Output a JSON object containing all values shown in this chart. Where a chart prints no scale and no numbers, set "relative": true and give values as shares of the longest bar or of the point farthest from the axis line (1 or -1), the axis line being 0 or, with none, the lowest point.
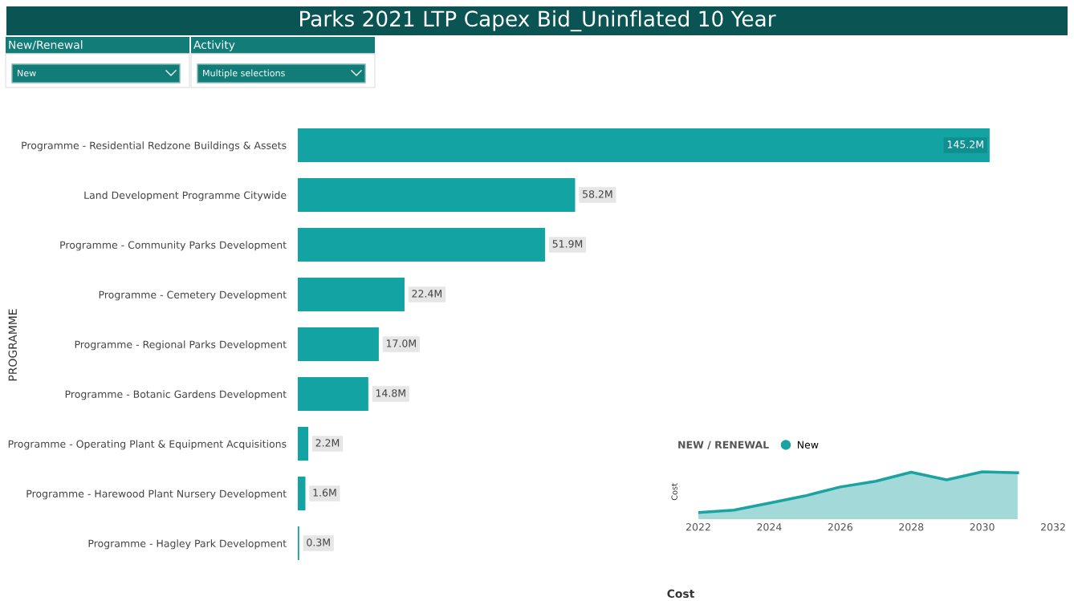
{
  "chart_data": [
    {
      "type": "other",
      "title": "Parks 2021 LTP Capex Bid_Uninflated 10 Year",
      "annotations": [
        "New/Renewal",
        "New",
        "Activity",
        "Multiple selections"
      ]
    },
    {
      "type": "bar",
      "orientation": "horizontal",
      "ylabel": "PROGRAMME",
      "xlabel": "Cost",
      "color": "#13a3a3",
      "tick_labels": "y",
      "grid": false,
      "categories": [
        "Programme - Residential Redzone Buildings & Assets",
        "Land Development Programme Citywide",
        "Programme - Community Parks Development",
        "Programme - Cemetery Development",
        "Programme - Regional Parks Development",
        "Programme - Botanic Gardens Development",
        "Programme - Operating Plant & Equipment Acquisitions",
        "Programme - Harewood Plant Nursery Development",
        "Programme - Hagley Park Development"
      ],
      "values": [
        145.2,
        58.2,
        51.9,
        22.4,
        17.0,
        14.8,
        2.2,
        1.6,
        0.3
      ],
      "value_labels": [
        "145.2M",
        "58.2M",
        "51.9M",
        "22.4M",
        "17.0M",
        "14.8M",
        "2.2M",
        "1.6M",
        "0.3M"
      ]
    },
    {
      "type": "area",
      "relative": true,
      "ylabel": "Cost",
      "legend_title": "NEW / RENEWAL",
      "legend": "top left",
      "tick_labels": "x",
      "grid": false,
      "marker": "none",
      "line_style": "solid",
      "xlim": [
        2022,
        2032
      ],
      "xticks": [
        2022,
        2024,
        2026,
        2028,
        2030,
        2032
      ],
      "x": [
        2022,
        2023,
        2024,
        2025,
        2026,
        2027,
        2028,
        2029,
        2030,
        2031
      ],
      "series": [
        {
          "name": "New",
          "color": "#1aa3a0",
          "values": [
            0.14,
            0.19,
            0.34,
            0.49,
            0.68,
            0.8,
            0.99,
            0.83,
            1,
            0.98
          ]
        }
      ]
    }
  ]
}
